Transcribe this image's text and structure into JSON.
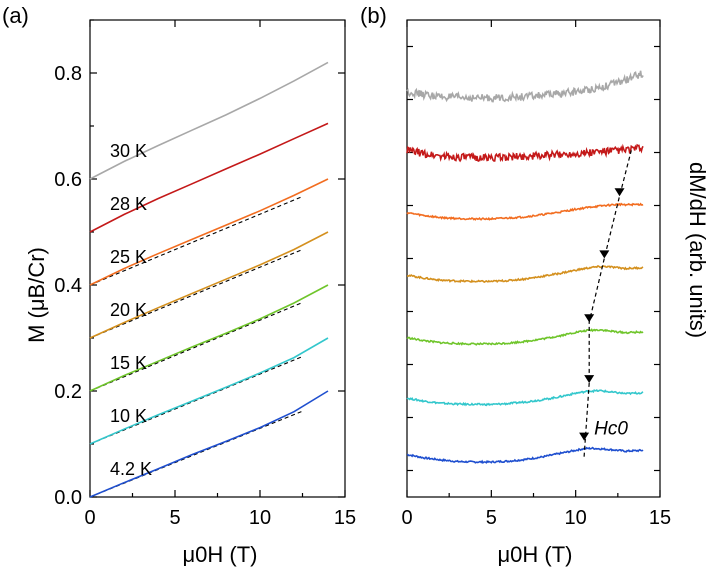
{
  "panels": {
    "a": {
      "label": "(a)"
    },
    "b": {
      "label": "(b)"
    }
  },
  "chart_data": [
    {
      "type": "line",
      "title": "(a)",
      "xlabel": "μ0H (T)",
      "ylabel": "M (μB/Cr)",
      "xlim": [
        0,
        15
      ],
      "ylim": [
        0,
        0.9
      ],
      "xticks": [
        "0",
        "5",
        "10",
        "15"
      ],
      "yticks": [
        "0.0",
        "0.2",
        "0.4",
        "0.6",
        "0.8"
      ],
      "series": [
        {
          "name": "4.2 K",
          "color": "#1f4fcf",
          "x": [
            0,
            2,
            4,
            6,
            8,
            10,
            12,
            14
          ],
          "y": [
            0.0,
            0.027,
            0.053,
            0.08,
            0.105,
            0.131,
            0.161,
            0.2
          ]
        },
        {
          "name": "10 K",
          "color": "#33c7cc",
          "x": [
            0,
            2,
            4,
            6,
            8,
            10,
            12,
            14
          ],
          "y": [
            0.1,
            0.128,
            0.155,
            0.181,
            0.207,
            0.234,
            0.263,
            0.3
          ]
        },
        {
          "name": "15 K",
          "color": "#6fc52b",
          "x": [
            0,
            2,
            4,
            6,
            8,
            10,
            12,
            14
          ],
          "y": [
            0.2,
            0.229,
            0.256,
            0.283,
            0.309,
            0.336,
            0.366,
            0.4
          ]
        },
        {
          "name": "20 K",
          "color": "#d4901e",
          "x": [
            0,
            2,
            4,
            6,
            8,
            10,
            12,
            14
          ],
          "y": [
            0.3,
            0.329,
            0.357,
            0.384,
            0.411,
            0.438,
            0.467,
            0.5
          ]
        },
        {
          "name": "25 K",
          "color": "#f26d20",
          "x": [
            0,
            2,
            4,
            6,
            8,
            10,
            12,
            14
          ],
          "y": [
            0.4,
            0.431,
            0.459,
            0.486,
            0.513,
            0.54,
            0.569,
            0.6
          ]
        },
        {
          "name": "28 K",
          "color": "#c41919",
          "x": [
            0,
            2,
            4,
            6,
            8,
            10,
            12,
            14
          ],
          "y": [
            0.5,
            0.533,
            0.563,
            0.591,
            0.619,
            0.647,
            0.676,
            0.705
          ]
        },
        {
          "name": "30 K",
          "color": "#a8a8a8",
          "x": [
            0,
            2,
            4,
            6,
            8,
            10,
            12,
            14
          ],
          "y": [
            0.6,
            0.633,
            0.663,
            0.692,
            0.721,
            0.752,
            0.785,
            0.82
          ]
        }
      ],
      "linear_fits": [
        {
          "x": [
            0,
            12.5
          ],
          "y": [
            0.0,
            0.162
          ]
        },
        {
          "x": [
            0,
            12.5
          ],
          "y": [
            0.1,
            0.265
          ]
        },
        {
          "x": [
            0,
            12.5
          ],
          "y": [
            0.2,
            0.367
          ]
        },
        {
          "x": [
            0,
            12.5
          ],
          "y": [
            0.3,
            0.467
          ]
        },
        {
          "x": [
            0,
            12.5
          ],
          "y": [
            0.4,
            0.567
          ]
        }
      ]
    },
    {
      "type": "line",
      "title": "(b)",
      "xlabel": "μ0H (T)",
      "ylabel": "dM/dH (arb. units)",
      "xlim": [
        0,
        15
      ],
      "xticks": [
        "0",
        "5",
        "10",
        "15"
      ],
      "ytick_count": 9,
      "series": [
        {
          "name": "4.2 K",
          "color": "#1f4fcf",
          "x": [
            0,
            1,
            2,
            3,
            4,
            5,
            6,
            7,
            8,
            9,
            10,
            10.5,
            11,
            12,
            13,
            14
          ],
          "y": [
            0.03,
            0.022,
            0.017,
            0.013,
            0.012,
            0.012,
            0.014,
            0.018,
            0.024,
            0.032,
            0.04,
            0.044,
            0.045,
            0.042,
            0.038,
            0.04
          ]
        },
        {
          "name": "10 K",
          "color": "#33c7cc",
          "x": [
            0,
            1,
            2,
            3,
            4,
            5,
            6,
            7,
            8,
            9,
            10,
            10.8,
            11.5,
            12,
            13,
            14
          ],
          "y": [
            0.165,
            0.158,
            0.153,
            0.151,
            0.15,
            0.15,
            0.152,
            0.156,
            0.161,
            0.168,
            0.177,
            0.182,
            0.183,
            0.18,
            0.176,
            0.178
          ]
        },
        {
          "name": "15 K",
          "color": "#6fc52b",
          "x": [
            0,
            1,
            2,
            3,
            4,
            5,
            6,
            7,
            8,
            9,
            10,
            10.8,
            11.5,
            12,
            13,
            14
          ],
          "y": [
            0.31,
            0.303,
            0.298,
            0.296,
            0.295,
            0.295,
            0.297,
            0.301,
            0.307,
            0.314,
            0.323,
            0.328,
            0.329,
            0.326,
            0.322,
            0.324
          ]
        },
        {
          "name": "20 K",
          "color": "#d4901e",
          "x": [
            0,
            1,
            2,
            3,
            4,
            5,
            6,
            7,
            8,
            9,
            10,
            11,
            11.7,
            12.5,
            13,
            14
          ],
          "y": [
            0.46,
            0.453,
            0.448,
            0.446,
            0.445,
            0.445,
            0.447,
            0.451,
            0.457,
            0.464,
            0.472,
            0.479,
            0.481,
            0.478,
            0.476,
            0.478
          ]
        },
        {
          "name": "25 K",
          "color": "#f26d20",
          "x": [
            0,
            1,
            2,
            3,
            4,
            5,
            6,
            7,
            8,
            9,
            10,
            11,
            12,
            12.6,
            13,
            14
          ],
          "y": [
            0.61,
            0.603,
            0.598,
            0.596,
            0.595,
            0.595,
            0.597,
            0.6,
            0.605,
            0.611,
            0.618,
            0.624,
            0.628,
            0.63,
            0.629,
            0.63
          ]
        },
        {
          "name": "28 K",
          "color": "#c41919",
          "x": [
            0,
            1,
            2,
            3,
            4,
            5,
            6,
            7,
            8,
            9,
            10,
            11,
            12,
            13,
            14
          ],
          "y": [
            0.76,
            0.751,
            0.746,
            0.743,
            0.742,
            0.742,
            0.743,
            0.745,
            0.747,
            0.749,
            0.752,
            0.755,
            0.758,
            0.761,
            0.765
          ]
        },
        {
          "name": "30 K",
          "color": "#a8a8a8",
          "x": [
            0,
            1,
            2,
            3,
            4,
            5,
            6,
            7,
            8,
            9,
            10,
            11,
            12,
            13,
            14
          ],
          "y": [
            0.9,
            0.893,
            0.888,
            0.886,
            0.885,
            0.885,
            0.886,
            0.888,
            0.891,
            0.895,
            0.9,
            0.907,
            0.916,
            0.928,
            0.945
          ]
        }
      ],
      "hc0_guide": {
        "label": "Hc0",
        "x": [
          10.5,
          10.8,
          10.8,
          11.7,
          12.6,
          13.3
        ],
        "y": [
          0.044,
          0.182,
          0.328,
          0.481,
          0.63,
          0.74
        ]
      }
    }
  ]
}
